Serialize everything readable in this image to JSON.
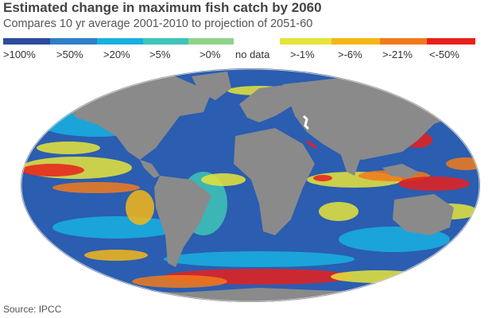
{
  "title": "Estimated change in maximum fish catch by 2060",
  "subtitle": "Compares 10 yr average 2001-2010 to projection of 2051-60",
  "legend": {
    "items": [
      {
        "label": ">100%",
        "color": "#2b4d9e"
      },
      {
        "label": ">50%",
        "color": "#2f7fc8"
      },
      {
        "label": ">20%",
        "color": "#19b0e0"
      },
      {
        "label": ">5%",
        "color": "#3fc4b8"
      },
      {
        "label": ">0%",
        "color": "#8fd38a"
      },
      {
        "label": "no data",
        "color": "#ffffff"
      },
      {
        "label": ">-1%",
        "color": "#e6e43a"
      },
      {
        "label": ">-6%",
        "color": "#f6b716"
      },
      {
        "label": ">-21%",
        "color": "#f17a1c"
      },
      {
        "label": "<-50%",
        "color": "#e8201c"
      }
    ]
  },
  "map": {
    "land_color": "#8a8a8a",
    "ocean_base_color": "#2b5db0"
  },
  "source": "Source: IPCC"
}
